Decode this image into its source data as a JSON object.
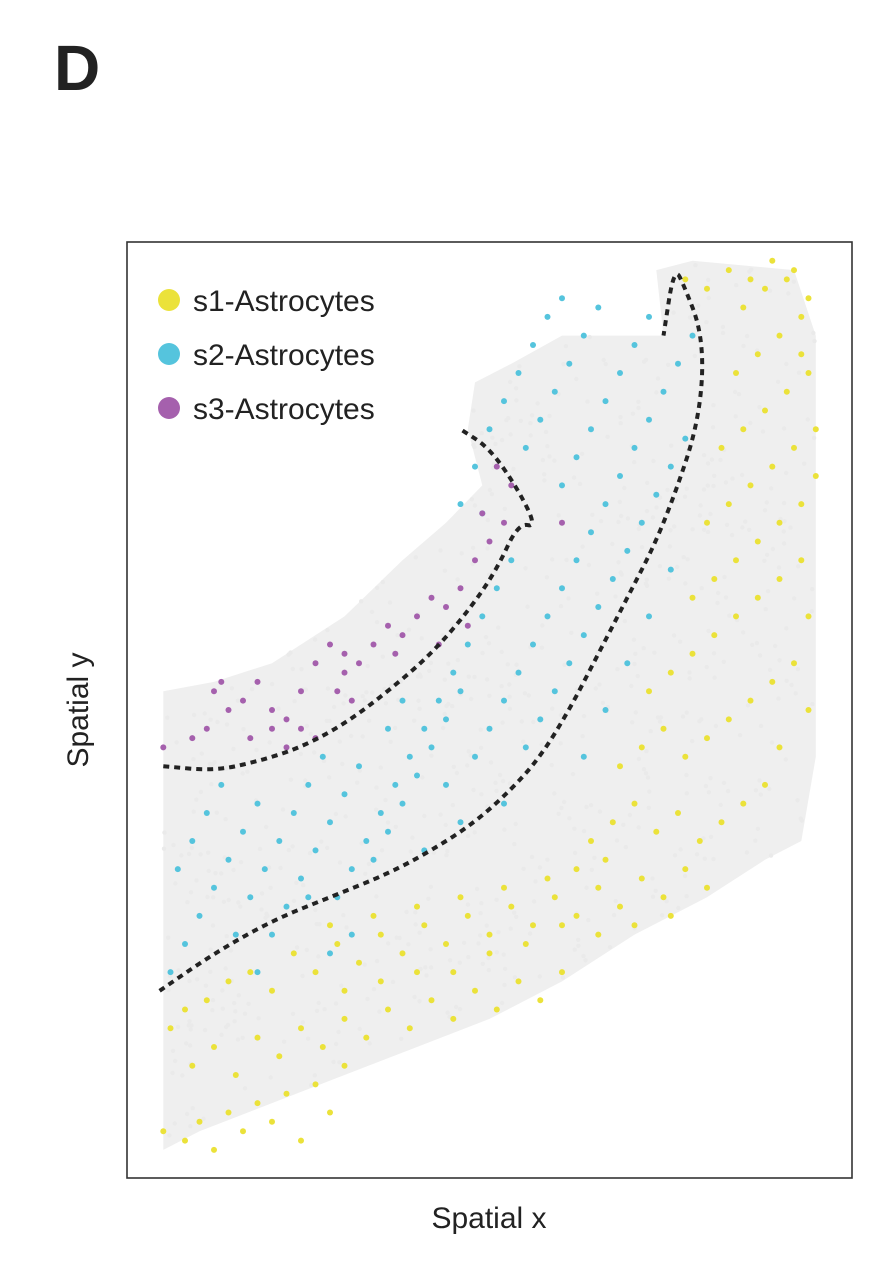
{
  "panel_label": "D",
  "chart_data": {
    "type": "scatter",
    "title": "",
    "xlabel": "Spatial x",
    "ylabel": "Spatial y",
    "xlim": [
      0,
      100
    ],
    "ylim": [
      0,
      100
    ],
    "grid": false,
    "show_ticks": false,
    "legend_position": "top-left",
    "background_cells_color": "#eaeaea",
    "boundary_style": "dotted",
    "boundary_color": "#222222",
    "boundaries": [
      {
        "x": [
          5,
          12,
          18,
          24,
          30,
          36,
          42,
          47,
          51,
          54,
          56.5,
          54,
          50,
          46
        ],
        "y": [
          44,
          43.5,
          44.5,
          46,
          48.5,
          52,
          56,
          60.5,
          65,
          70,
          69.5,
          73.5,
          78,
          80
        ]
      },
      {
        "x": [
          4.5,
          12,
          20,
          28,
          36,
          42,
          48,
          53,
          57,
          61,
          65,
          69,
          73,
          76,
          78.5,
          79.5,
          79,
          77,
          75.5,
          74
        ],
        "y": [
          20,
          24,
          27.5,
          30,
          32.5,
          35,
          38,
          41.5,
          45,
          50,
          56,
          62,
          68,
          74,
          80,
          86,
          91,
          95,
          97.5,
          90
        ]
      }
    ],
    "series": [
      {
        "name": "s1-Astrocytes",
        "color": "#ebe23a",
        "points": [
          [
            5,
            5
          ],
          [
            8,
            4
          ],
          [
            10,
            6
          ],
          [
            12,
            3
          ],
          [
            14,
            7
          ],
          [
            16,
            5
          ],
          [
            18,
            8
          ],
          [
            20,
            6
          ],
          [
            22,
            9
          ],
          [
            24,
            4
          ],
          [
            26,
            10
          ],
          [
            28,
            7
          ],
          [
            30,
            12
          ],
          [
            9,
            12
          ],
          [
            12,
            14
          ],
          [
            15,
            11
          ],
          [
            18,
            15
          ],
          [
            21,
            13
          ],
          [
            24,
            16
          ],
          [
            27,
            14
          ],
          [
            30,
            17
          ],
          [
            33,
            15
          ],
          [
            36,
            18
          ],
          [
            39,
            16
          ],
          [
            42,
            19
          ],
          [
            45,
            17
          ],
          [
            48,
            20
          ],
          [
            51,
            18
          ],
          [
            54,
            21
          ],
          [
            57,
            19
          ],
          [
            60,
            22
          ],
          [
            6,
            16
          ],
          [
            8,
            18
          ],
          [
            11,
            19
          ],
          [
            14,
            21
          ],
          [
            17,
            22
          ],
          [
            20,
            20
          ],
          [
            23,
            24
          ],
          [
            26,
            22
          ],
          [
            29,
            25
          ],
          [
            32,
            23
          ],
          [
            35,
            26
          ],
          [
            38,
            24
          ],
          [
            41,
            27
          ],
          [
            44,
            25
          ],
          [
            47,
            28
          ],
          [
            50,
            26
          ],
          [
            53,
            29
          ],
          [
            56,
            27
          ],
          [
            59,
            30
          ],
          [
            62,
            28
          ],
          [
            65,
            31
          ],
          [
            68,
            29
          ],
          [
            71,
            32
          ],
          [
            74,
            30
          ],
          [
            77,
            33
          ],
          [
            80,
            31
          ],
          [
            64,
            36
          ],
          [
            67,
            38
          ],
          [
            70,
            40
          ],
          [
            73,
            37
          ],
          [
            76,
            39
          ],
          [
            79,
            36
          ],
          [
            82,
            38
          ],
          [
            85,
            40
          ],
          [
            88,
            42
          ],
          [
            90,
            46
          ],
          [
            68,
            44
          ],
          [
            71,
            46
          ],
          [
            74,
            48
          ],
          [
            77,
            45
          ],
          [
            80,
            47
          ],
          [
            83,
            49
          ],
          [
            86,
            51
          ],
          [
            89,
            53
          ],
          [
            92,
            55
          ],
          [
            94,
            50
          ],
          [
            94,
            60
          ],
          [
            72,
            52
          ],
          [
            75,
            54
          ],
          [
            78,
            56
          ],
          [
            81,
            58
          ],
          [
            84,
            60
          ],
          [
            87,
            62
          ],
          [
            90,
            64
          ],
          [
            93,
            66
          ],
          [
            78,
            62
          ],
          [
            81,
            64
          ],
          [
            84,
            66
          ],
          [
            87,
            68
          ],
          [
            90,
            70
          ],
          [
            93,
            72
          ],
          [
            80,
            70
          ],
          [
            83,
            72
          ],
          [
            86,
            74
          ],
          [
            89,
            76
          ],
          [
            92,
            78
          ],
          [
            95,
            80
          ],
          [
            82,
            78
          ],
          [
            85,
            80
          ],
          [
            88,
            82
          ],
          [
            91,
            84
          ],
          [
            94,
            86
          ],
          [
            84,
            86
          ],
          [
            87,
            88
          ],
          [
            90,
            90
          ],
          [
            93,
            92
          ],
          [
            85,
            93
          ],
          [
            88,
            95
          ],
          [
            91,
            96
          ],
          [
            94,
            94
          ],
          [
            77,
            96
          ],
          [
            80,
            95
          ],
          [
            83,
            97
          ],
          [
            86,
            96
          ],
          [
            89,
            98
          ],
          [
            92,
            97
          ],
          [
            93,
            88
          ],
          [
            95,
            75
          ],
          [
            30,
            20
          ],
          [
            35,
            21
          ],
          [
            40,
            22
          ],
          [
            45,
            22
          ],
          [
            50,
            24
          ],
          [
            55,
            25
          ],
          [
            60,
            27
          ],
          [
            65,
            26
          ],
          [
            70,
            27
          ],
          [
            75,
            28
          ],
          [
            62,
            33
          ],
          [
            66,
            34
          ],
          [
            58,
            32
          ],
          [
            52,
            31
          ],
          [
            46,
            30
          ],
          [
            40,
            29
          ],
          [
            34,
            28
          ],
          [
            28,
            27
          ]
        ]
      },
      {
        "name": "s2-Astrocytes",
        "color": "#55c4dd",
        "points": [
          [
            6,
            22
          ],
          [
            8,
            25
          ],
          [
            10,
            28
          ],
          [
            12,
            31
          ],
          [
            14,
            34
          ],
          [
            16,
            37
          ],
          [
            18,
            40
          ],
          [
            7,
            33
          ],
          [
            9,
            36
          ],
          [
            11,
            39
          ],
          [
            13,
            42
          ],
          [
            20,
            26
          ],
          [
            22,
            29
          ],
          [
            24,
            32
          ],
          [
            26,
            35
          ],
          [
            28,
            38
          ],
          [
            30,
            41
          ],
          [
            32,
            44
          ],
          [
            17,
            30
          ],
          [
            19,
            33
          ],
          [
            21,
            36
          ],
          [
            23,
            39
          ],
          [
            25,
            42
          ],
          [
            27,
            45
          ],
          [
            34,
            34
          ],
          [
            36,
            37
          ],
          [
            38,
            40
          ],
          [
            40,
            43
          ],
          [
            42,
            46
          ],
          [
            44,
            49
          ],
          [
            46,
            52
          ],
          [
            29,
            30
          ],
          [
            31,
            33
          ],
          [
            33,
            36
          ],
          [
            35,
            39
          ],
          [
            37,
            42
          ],
          [
            39,
            45
          ],
          [
            41,
            48
          ],
          [
            43,
            51
          ],
          [
            45,
            54
          ],
          [
            47,
            57
          ],
          [
            49,
            60
          ],
          [
            51,
            63
          ],
          [
            53,
            66
          ],
          [
            48,
            45
          ],
          [
            50,
            48
          ],
          [
            52,
            51
          ],
          [
            54,
            54
          ],
          [
            56,
            57
          ],
          [
            58,
            60
          ],
          [
            60,
            63
          ],
          [
            62,
            66
          ],
          [
            64,
            69
          ],
          [
            66,
            72
          ],
          [
            68,
            75
          ],
          [
            70,
            78
          ],
          [
            72,
            81
          ],
          [
            74,
            84
          ],
          [
            76,
            87
          ],
          [
            78,
            90
          ],
          [
            55,
            46
          ],
          [
            57,
            49
          ],
          [
            59,
            52
          ],
          [
            61,
            55
          ],
          [
            63,
            58
          ],
          [
            65,
            61
          ],
          [
            67,
            64
          ],
          [
            69,
            67
          ],
          [
            71,
            70
          ],
          [
            73,
            73
          ],
          [
            75,
            76
          ],
          [
            77,
            79
          ],
          [
            60,
            74
          ],
          [
            62,
            77
          ],
          [
            64,
            80
          ],
          [
            66,
            83
          ],
          [
            68,
            86
          ],
          [
            70,
            89
          ],
          [
            72,
            92
          ],
          [
            55,
            78
          ],
          [
            57,
            81
          ],
          [
            59,
            84
          ],
          [
            61,
            87
          ],
          [
            63,
            90
          ],
          [
            65,
            93
          ],
          [
            50,
            80
          ],
          [
            52,
            83
          ],
          [
            54,
            86
          ],
          [
            56,
            89
          ],
          [
            58,
            92
          ],
          [
            60,
            94
          ],
          [
            48,
            76
          ],
          [
            49,
            71
          ],
          [
            46,
            72
          ],
          [
            63,
            45
          ],
          [
            66,
            50
          ],
          [
            69,
            55
          ],
          [
            72,
            60
          ],
          [
            75,
            65
          ],
          [
            38,
            51
          ],
          [
            36,
            48
          ],
          [
            44,
            42
          ],
          [
            46,
            38
          ],
          [
            25,
            30
          ],
          [
            28,
            24
          ],
          [
            31,
            26
          ],
          [
            15,
            26
          ],
          [
            18,
            22
          ],
          [
            41,
            35
          ],
          [
            52,
            40
          ]
        ]
      },
      {
        "name": "s3-Astrocytes",
        "color": "#a560ad",
        "points": [
          [
            5,
            46
          ],
          [
            9,
            47
          ],
          [
            12,
            52
          ],
          [
            14,
            50
          ],
          [
            16,
            51
          ],
          [
            18,
            53
          ],
          [
            20,
            50
          ],
          [
            22,
            49
          ],
          [
            24,
            52
          ],
          [
            26,
            55
          ],
          [
            28,
            57
          ],
          [
            30,
            54
          ],
          [
            29,
            52
          ],
          [
            32,
            55
          ],
          [
            34,
            57
          ],
          [
            36,
            59
          ],
          [
            38,
            58
          ],
          [
            40,
            60
          ],
          [
            42,
            62
          ],
          [
            44,
            61
          ],
          [
            46,
            63
          ],
          [
            48,
            66
          ],
          [
            50,
            68
          ],
          [
            52,
            70
          ],
          [
            53,
            74
          ],
          [
            51,
            76
          ],
          [
            24,
            48
          ],
          [
            26,
            47
          ],
          [
            20,
            48
          ],
          [
            17,
            47
          ],
          [
            31,
            51
          ],
          [
            30,
            56
          ],
          [
            37,
            56
          ],
          [
            43,
            57
          ],
          [
            47,
            59
          ],
          [
            49,
            71
          ],
          [
            60,
            70
          ],
          [
            13,
            53
          ],
          [
            11,
            48
          ],
          [
            22,
            46
          ]
        ]
      }
    ]
  }
}
